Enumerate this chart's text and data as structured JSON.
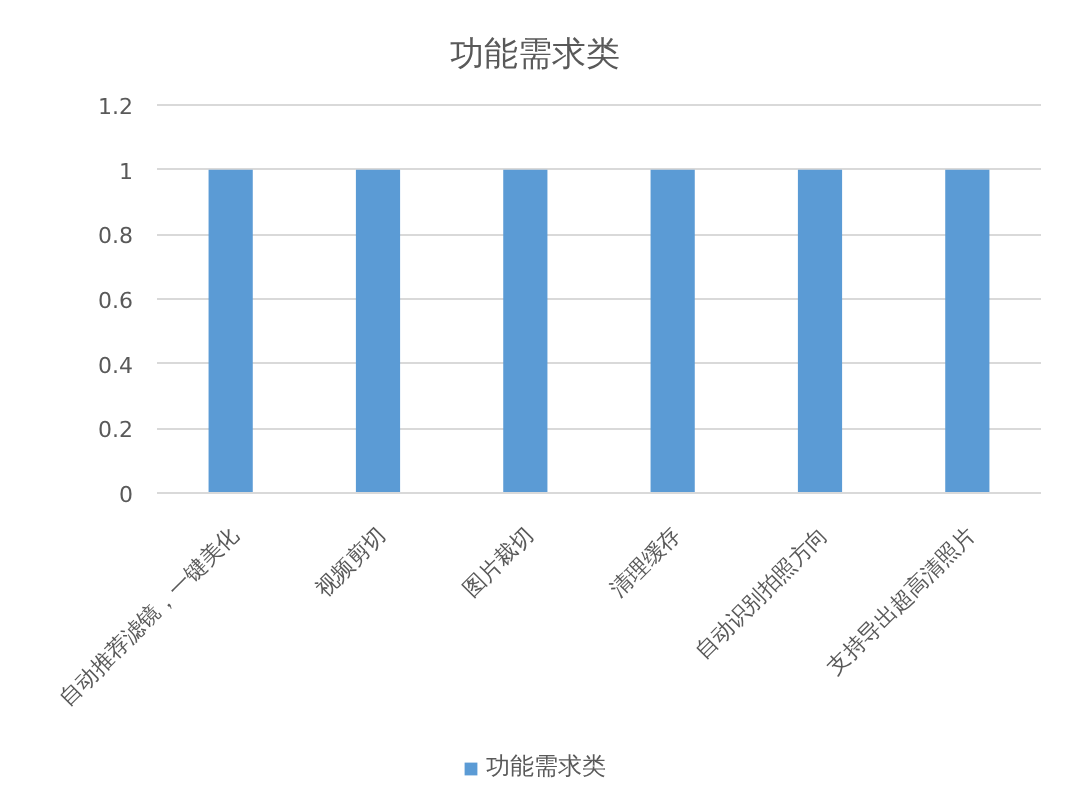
{
  "chart_data": {
    "type": "bar",
    "title": "功能需求类",
    "categories": [
      "自动推荐滤镜，一键美化",
      "视频剪切",
      "图片裁切",
      "清理缓存",
      "自动识别拍照方向",
      "支持导出超高清照片"
    ],
    "series": [
      {
        "name": "功能需求类",
        "color": "#5b9bd5",
        "values": [
          1,
          1,
          1,
          1,
          1,
          1
        ]
      }
    ],
    "ylim": [
      0,
      1.2
    ],
    "yticks": [
      0,
      0.2,
      0.4,
      0.6,
      0.8,
      1,
      1.2
    ],
    "grid": "y",
    "legend": "bottom"
  }
}
